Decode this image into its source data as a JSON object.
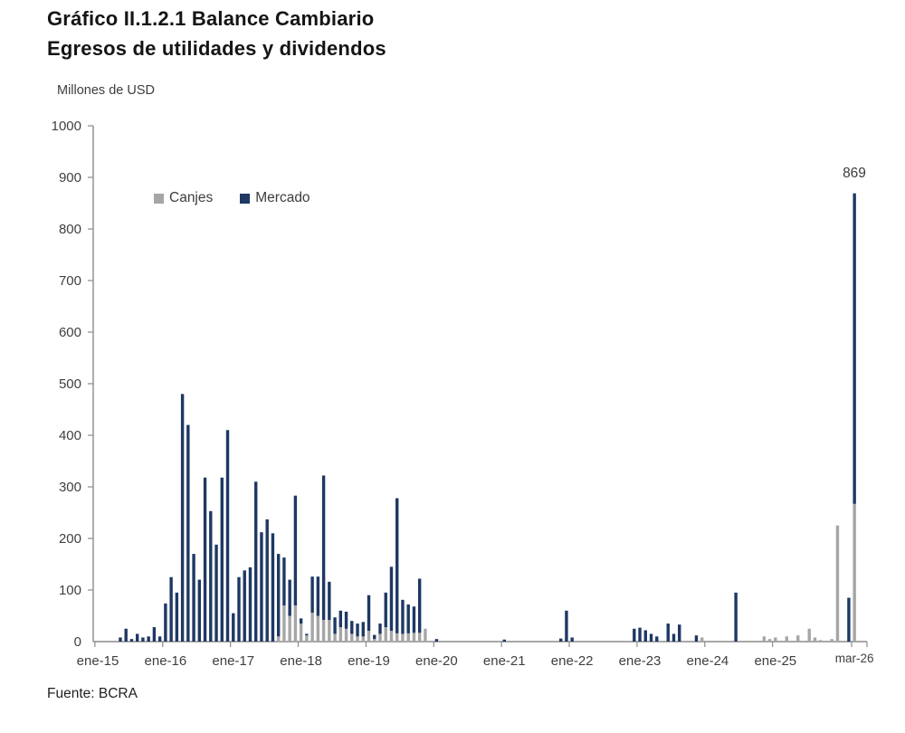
{
  "header": {
    "title_line1": "Gráfico II.1.2.1 Balance Cambiario",
    "title_line2": "Egresos de utilidades y dividendos"
  },
  "chart": {
    "unit_label": "Millones de USD",
    "annotation": {
      "text": "869",
      "month": "mar-26",
      "value": 869
    }
  },
  "legend": [
    {
      "label": "Canjes",
      "color": "#a6a6a6"
    },
    {
      "label": "Mercado",
      "color": "#1f3864"
    }
  ],
  "footer": {
    "source": "Fuente: BCRA"
  },
  "colors": {
    "canjes": "#a6a6a6",
    "mercado": "#1f3864",
    "axis_line": "#8c8c8c",
    "tick_text": "#3f3f3f"
  },
  "chart_data": {
    "type": "bar",
    "stacked": true,
    "title": "Gráfico II.1.2.1 Balance Cambiario — Egresos de utilidades y dividendos",
    "xlabel": "",
    "ylabel": "Millones de USD",
    "ylim": [
      0,
      1000
    ],
    "ytick_interval": 100,
    "grid": false,
    "legend_position": "top-left-inside",
    "x_axis_labels": [
      {
        "label": "ene-15",
        "month": 0
      },
      {
        "label": "ene-16",
        "month": 12
      },
      {
        "label": "ene-17",
        "month": 24
      },
      {
        "label": "ene-18",
        "month": 36
      },
      {
        "label": "ene-19",
        "month": 48
      },
      {
        "label": "ene-20",
        "month": 60
      },
      {
        "label": "ene-21",
        "month": 72
      },
      {
        "label": "ene-22",
        "month": 84
      },
      {
        "label": "ene-23",
        "month": 96
      },
      {
        "label": "ene-24",
        "month": 108
      },
      {
        "label": "ene-25",
        "month": 120
      },
      {
        "label": "mar-26",
        "month": 134
      }
    ],
    "categories": [
      "ene-15",
      "feb-15",
      "mar-15",
      "abr-15",
      "may-15",
      "jun-15",
      "jul-15",
      "ago-15",
      "sep-15",
      "oct-15",
      "nov-15",
      "dic-15",
      "ene-16",
      "feb-16",
      "mar-16",
      "abr-16",
      "may-16",
      "jun-16",
      "jul-16",
      "ago-16",
      "sep-16",
      "oct-16",
      "nov-16",
      "dic-16",
      "ene-17",
      "feb-17",
      "mar-17",
      "abr-17",
      "may-17",
      "jun-17",
      "jul-17",
      "ago-17",
      "sep-17",
      "oct-17",
      "nov-17",
      "dic-17",
      "ene-18",
      "feb-18",
      "mar-18",
      "abr-18",
      "may-18",
      "jun-18",
      "jul-18",
      "ago-18",
      "sep-18",
      "oct-18",
      "nov-18",
      "dic-18",
      "ene-19",
      "feb-19",
      "mar-19",
      "abr-19",
      "may-19",
      "jun-19",
      "jul-19",
      "ago-19",
      "sep-19",
      "oct-19",
      "nov-19",
      "dic-19",
      "ene-20",
      "feb-20",
      "mar-20",
      "abr-20",
      "may-20",
      "jun-20",
      "jul-20",
      "ago-20",
      "sep-20",
      "oct-20",
      "nov-20",
      "dic-20",
      "ene-21",
      "feb-21",
      "mar-21",
      "abr-21",
      "may-21",
      "jun-21",
      "jul-21",
      "ago-21",
      "sep-21",
      "oct-21",
      "nov-21",
      "dic-21",
      "ene-22",
      "feb-22",
      "mar-22",
      "abr-22",
      "may-22",
      "jun-22",
      "jul-22",
      "ago-22",
      "sep-22",
      "oct-22",
      "nov-22",
      "dic-22",
      "ene-23",
      "feb-23",
      "mar-23",
      "abr-23",
      "may-23",
      "jun-23",
      "jul-23",
      "ago-23",
      "sep-23",
      "oct-23",
      "nov-23",
      "dic-23",
      "ene-24",
      "feb-24",
      "mar-24",
      "abr-24",
      "may-24",
      "jun-24",
      "jul-24",
      "ago-24",
      "sep-24",
      "oct-24",
      "nov-24",
      "dic-24",
      "ene-25",
      "feb-25",
      "mar-25",
      "abr-25",
      "may-25",
      "jun-25",
      "jul-25",
      "ago-25",
      "sep-25",
      "oct-25",
      "nov-25",
      "dic-25",
      "ene-26",
      "feb-26",
      "mar-26"
    ],
    "series": [
      {
        "name": "Canjes",
        "color": "#a6a6a6",
        "values": [
          0,
          0,
          0,
          0,
          0,
          0,
          0,
          0,
          0,
          0,
          0,
          0,
          0,
          0,
          0,
          0,
          0,
          0,
          0,
          0,
          0,
          0,
          0,
          0,
          0,
          0,
          0,
          0,
          0,
          0,
          0,
          0,
          10,
          70,
          50,
          70,
          35,
          12,
          56,
          50,
          42,
          42,
          15,
          28,
          25,
          15,
          10,
          10,
          21,
          5,
          15,
          28,
          21,
          16,
          15,
          16,
          17,
          17,
          25,
          0,
          0,
          0,
          0,
          0,
          0,
          0,
          0,
          0,
          0,
          0,
          0,
          0,
          0,
          0,
          0,
          0,
          0,
          0,
          0,
          0,
          0,
          0,
          0,
          0,
          0,
          0,
          0,
          0,
          0,
          0,
          0,
          0,
          0,
          0,
          0,
          0,
          0,
          0,
          0,
          0,
          0,
          0,
          0,
          0,
          0,
          0,
          0,
          8,
          0,
          0,
          0,
          0,
          0,
          0,
          0,
          0,
          0,
          0,
          10,
          5,
          8,
          0,
          10,
          0,
          12,
          0,
          25,
          8,
          3,
          0,
          5,
          225,
          0,
          0,
          267
        ]
      },
      {
        "name": "Mercado",
        "color": "#1f3864",
        "values": [
          0,
          0,
          0,
          0,
          8,
          25,
          5,
          15,
          8,
          10,
          28,
          10,
          74,
          125,
          95,
          480,
          420,
          170,
          120,
          318,
          253,
          188,
          318,
          410,
          55,
          125,
          138,
          144,
          310,
          212,
          237,
          210,
          160,
          93,
          70,
          213,
          10,
          3,
          70,
          76,
          280,
          74,
          32,
          32,
          33,
          25,
          25,
          28,
          69,
          8,
          20,
          67,
          124,
          262,
          66,
          56,
          51,
          105,
          0,
          0,
          5,
          0,
          0,
          0,
          0,
          0,
          0,
          0,
          0,
          0,
          0,
          0,
          4,
          0,
          0,
          0,
          0,
          0,
          0,
          0,
          0,
          0,
          6,
          60,
          8,
          0,
          0,
          0,
          0,
          0,
          0,
          0,
          0,
          0,
          0,
          25,
          27,
          22,
          15,
          10,
          0,
          35,
          15,
          33,
          0,
          0,
          12,
          0,
          0,
          0,
          0,
          0,
          0,
          95,
          0,
          0,
          0,
          0,
          0,
          0,
          0,
          0,
          0,
          0,
          0,
          0,
          0,
          0,
          0,
          0,
          0,
          0,
          0,
          85,
          602
        ]
      }
    ],
    "annotations": [
      {
        "x": "mar-26",
        "y": 869,
        "text": "869"
      }
    ]
  }
}
